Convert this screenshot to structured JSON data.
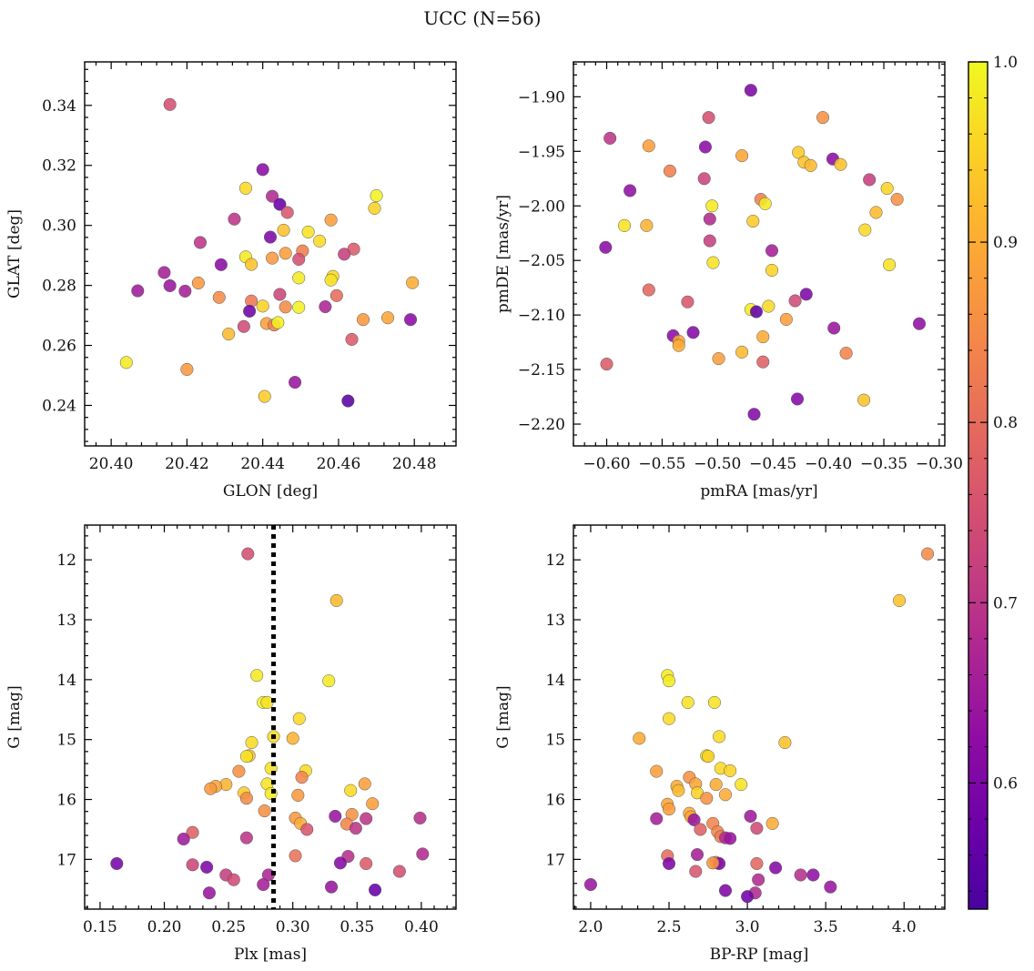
{
  "title": "UCC (N=56)",
  "colorbar": {
    "min": 0.53,
    "max": 1.0,
    "ticks": [
      0.6,
      0.7,
      0.8,
      0.9,
      1.0
    ],
    "tick_labels": [
      "0.6",
      "0.7",
      "0.8",
      "0.9",
      "1.0"
    ],
    "colormap": "plasma"
  },
  "chart_data": [
    {
      "id": "glon-glat",
      "type": "scatter",
      "xlabel": "GLON [deg]",
      "ylabel": "GLAT [deg]",
      "xlim": [
        20.393,
        20.491
      ],
      "ylim": [
        0.2265,
        0.3545
      ],
      "xticks": [
        20.4,
        20.42,
        20.44,
        20.46,
        20.48
      ],
      "xtick_labels": [
        "20.40",
        "20.42",
        "20.44",
        "20.46",
        "20.48"
      ],
      "yticks": [
        0.24,
        0.26,
        0.28,
        0.3,
        0.32,
        0.34
      ],
      "ytick_labels": [
        "0.24",
        "0.26",
        "0.28",
        "0.30",
        "0.32",
        "0.34"
      ],
      "points": [
        [
          20.4155,
          0.3403,
          0.75
        ],
        [
          20.44,
          0.3186,
          0.62
        ],
        [
          20.4355,
          0.3124,
          0.96
        ],
        [
          20.4425,
          0.3097,
          0.68
        ],
        [
          20.4445,
          0.307,
          0.57
        ],
        [
          20.47,
          0.3099,
          0.99
        ],
        [
          20.4465,
          0.3043,
          0.76
        ],
        [
          20.4325,
          0.3021,
          0.7
        ],
        [
          20.4695,
          0.3057,
          0.95
        ],
        [
          20.452,
          0.2978,
          0.97
        ],
        [
          20.458,
          0.3018,
          0.88
        ],
        [
          20.4455,
          0.2984,
          0.93
        ],
        [
          20.442,
          0.2961,
          0.6
        ],
        [
          20.4235,
          0.2943,
          0.7
        ],
        [
          20.455,
          0.2948,
          0.96
        ],
        [
          20.4505,
          0.2915,
          0.83
        ],
        [
          20.464,
          0.2921,
          0.77
        ],
        [
          20.4615,
          0.2904,
          0.72
        ],
        [
          20.446,
          0.2907,
          0.88
        ],
        [
          20.4355,
          0.2895,
          0.98
        ],
        [
          20.4425,
          0.2891,
          0.87
        ],
        [
          20.4495,
          0.2887,
          0.75
        ],
        [
          20.429,
          0.2869,
          0.62
        ],
        [
          20.437,
          0.287,
          0.93
        ],
        [
          20.414,
          0.2843,
          0.66
        ],
        [
          20.423,
          0.2808,
          0.87
        ],
        [
          20.4495,
          0.2825,
          0.98
        ],
        [
          20.4585,
          0.283,
          0.96
        ],
        [
          20.4795,
          0.2809,
          0.9
        ],
        [
          20.4155,
          0.2799,
          0.64
        ],
        [
          20.407,
          0.2782,
          0.65
        ],
        [
          20.4195,
          0.2781,
          0.66
        ],
        [
          20.458,
          0.2818,
          0.97
        ],
        [
          20.4285,
          0.276,
          0.85
        ],
        [
          20.437,
          0.2748,
          0.82
        ],
        [
          20.4595,
          0.2766,
          0.8
        ],
        [
          20.4445,
          0.277,
          0.73
        ],
        [
          20.44,
          0.2731,
          0.95
        ],
        [
          20.4495,
          0.2727,
          0.99
        ],
        [
          20.4565,
          0.2729,
          0.67
        ],
        [
          20.4365,
          0.2714,
          0.58
        ],
        [
          20.446,
          0.2728,
          0.85
        ],
        [
          20.4665,
          0.2686,
          0.87
        ],
        [
          20.473,
          0.2692,
          0.89
        ],
        [
          20.479,
          0.2686,
          0.62
        ],
        [
          20.441,
          0.2673,
          0.88
        ],
        [
          20.443,
          0.2668,
          0.83
        ],
        [
          20.444,
          0.2676,
          0.99
        ],
        [
          20.435,
          0.2663,
          0.74
        ],
        [
          20.431,
          0.2638,
          0.92
        ],
        [
          20.4635,
          0.262,
          0.77
        ],
        [
          20.404,
          0.2543,
          0.98
        ],
        [
          20.42,
          0.252,
          0.87
        ],
        [
          20.4405,
          0.243,
          0.94
        ],
        [
          20.4485,
          0.2477,
          0.64
        ],
        [
          20.4625,
          0.2415,
          0.55
        ]
      ]
    },
    {
      "id": "pmra-pmde",
      "type": "scatter",
      "xlabel": "pmRA [mas/yr]",
      "ylabel": "pmDE [mas/yr]",
      "xlim": [
        -0.63,
        -0.295
      ],
      "ylim": [
        -2.22,
        -1.868
      ],
      "xticks": [
        -0.6,
        -0.55,
        -0.5,
        -0.45,
        -0.4,
        -0.35,
        -0.3
      ],
      "xtick_labels": [
        "−0.60",
        "−0.55",
        "−0.50",
        "−0.45",
        "−0.40",
        "−0.35",
        "−0.30"
      ],
      "yticks": [
        -2.2,
        -2.15,
        -2.1,
        -2.05,
        -2.0,
        -1.95,
        -1.9
      ],
      "ytick_labels": [
        "−2.20",
        "−2.15",
        "−2.10",
        "−2.05",
        "−2.00",
        "−1.95",
        "−1.90"
      ],
      "points": [
        [
          -0.47,
          -1.894,
          0.6
        ],
        [
          -0.508,
          -1.919,
          0.75
        ],
        [
          -0.405,
          -1.919,
          0.86
        ],
        [
          -0.597,
          -1.938,
          0.7
        ],
        [
          -0.562,
          -1.945,
          0.88
        ],
        [
          -0.511,
          -1.946,
          0.62
        ],
        [
          -0.478,
          -1.954,
          0.89
        ],
        [
          -0.427,
          -1.951,
          0.94
        ],
        [
          -0.396,
          -1.957,
          0.62
        ],
        [
          -0.422,
          -1.96,
          0.93
        ],
        [
          -0.416,
          -1.963,
          0.92
        ],
        [
          -0.389,
          -1.962,
          0.93
        ],
        [
          -0.543,
          -1.968,
          0.83
        ],
        [
          -0.512,
          -1.975,
          0.73
        ],
        [
          -0.363,
          -1.976,
          0.72
        ],
        [
          -0.579,
          -1.986,
          0.63
        ],
        [
          -0.347,
          -1.984,
          0.95
        ],
        [
          -0.338,
          -1.994,
          0.86
        ],
        [
          -0.461,
          -1.994,
          0.83
        ],
        [
          -0.457,
          -1.998,
          0.98
        ],
        [
          -0.505,
          -2.0,
          0.98
        ],
        [
          -0.357,
          -2.006,
          0.92
        ],
        [
          -0.507,
          -2.012,
          0.68
        ],
        [
          -0.468,
          -2.014,
          0.94
        ],
        [
          -0.584,
          -2.018,
          0.97
        ],
        [
          -0.564,
          -2.018,
          0.91
        ],
        [
          -0.367,
          -2.022,
          0.96
        ],
        [
          -0.507,
          -2.032,
          0.72
        ],
        [
          -0.601,
          -2.038,
          0.62
        ],
        [
          -0.451,
          -2.041,
          0.66
        ],
        [
          -0.504,
          -2.052,
          0.97
        ],
        [
          -0.345,
          -2.054,
          0.97
        ],
        [
          -0.451,
          -2.059,
          0.95
        ],
        [
          -0.562,
          -2.077,
          0.79
        ],
        [
          -0.42,
          -2.081,
          0.6
        ],
        [
          -0.527,
          -2.088,
          0.76
        ],
        [
          -0.43,
          -2.087,
          0.74
        ],
        [
          -0.454,
          -2.092,
          0.96
        ],
        [
          -0.47,
          -2.095,
          0.98
        ],
        [
          -0.438,
          -2.104,
          0.88
        ],
        [
          -0.318,
          -2.108,
          0.63
        ],
        [
          -0.395,
          -2.112,
          0.64
        ],
        [
          -0.522,
          -2.116,
          0.61
        ],
        [
          -0.54,
          -2.119,
          0.62
        ],
        [
          -0.459,
          -2.12,
          0.9
        ],
        [
          -0.535,
          -2.124,
          0.89
        ],
        [
          -0.535,
          -2.128,
          0.9
        ],
        [
          -0.478,
          -2.134,
          0.92
        ],
        [
          -0.384,
          -2.135,
          0.84
        ],
        [
          -0.499,
          -2.14,
          0.88
        ],
        [
          -0.6,
          -2.145,
          0.77
        ],
        [
          -0.459,
          -2.143,
          0.78
        ],
        [
          -0.428,
          -2.177,
          0.61
        ],
        [
          -0.368,
          -2.178,
          0.93
        ],
        [
          -0.467,
          -2.191,
          0.61
        ],
        [
          -0.465,
          -2.097,
          0.56
        ]
      ]
    },
    {
      "id": "plx-g",
      "type": "scatter",
      "xlabel": "Plx [mas]",
      "ylabel": "G [mag]",
      "xlim": [
        0.138,
        0.427
      ],
      "ylim": [
        17.83,
        11.42
      ],
      "inverted_y": true,
      "vline": {
        "x": 0.285,
        "style": "dotted"
      },
      "xticks": [
        0.15,
        0.2,
        0.25,
        0.3,
        0.35,
        0.4
      ],
      "xtick_labels": [
        "0.15",
        "0.20",
        "0.25",
        "0.30",
        "0.35",
        "0.40"
      ],
      "yticks": [
        12,
        13,
        14,
        15,
        16,
        17
      ],
      "ytick_labels": [
        "12",
        "13",
        "14",
        "15",
        "16",
        "17"
      ],
      "points": [
        [
          0.265,
          11.9,
          0.75
        ],
        [
          0.334,
          12.68,
          0.92
        ],
        [
          0.272,
          13.93,
          0.98
        ],
        [
          0.328,
          14.02,
          0.98
        ],
        [
          0.277,
          14.38,
          0.99
        ],
        [
          0.28,
          14.38,
          0.97
        ],
        [
          0.305,
          14.65,
          0.96
        ],
        [
          0.285,
          14.95,
          0.96
        ],
        [
          0.3,
          14.98,
          0.91
        ],
        [
          0.268,
          15.05,
          0.96
        ],
        [
          0.258,
          15.53,
          0.86
        ],
        [
          0.283,
          15.48,
          0.97
        ],
        [
          0.31,
          15.52,
          0.96
        ],
        [
          0.266,
          15.27,
          0.93
        ],
        [
          0.264,
          15.28,
          0.97
        ],
        [
          0.307,
          15.63,
          0.84
        ],
        [
          0.356,
          15.74,
          0.88
        ],
        [
          0.248,
          15.75,
          0.91
        ],
        [
          0.24,
          15.78,
          0.89
        ],
        [
          0.236,
          15.82,
          0.87
        ],
        [
          0.28,
          15.74,
          0.97
        ],
        [
          0.262,
          15.89,
          0.94
        ],
        [
          0.283,
          15.9,
          0.98
        ],
        [
          0.304,
          15.93,
          0.87
        ],
        [
          0.345,
          15.85,
          0.96
        ],
        [
          0.264,
          15.98,
          0.85
        ],
        [
          0.362,
          16.07,
          0.88
        ],
        [
          0.278,
          16.19,
          0.86
        ],
        [
          0.302,
          16.31,
          0.87
        ],
        [
          0.346,
          16.25,
          0.86
        ],
        [
          0.306,
          16.4,
          0.9
        ],
        [
          0.333,
          16.28,
          0.64
        ],
        [
          0.342,
          16.41,
          0.84
        ],
        [
          0.357,
          16.32,
          0.7
        ],
        [
          0.399,
          16.31,
          0.69
        ],
        [
          0.349,
          16.48,
          0.7
        ],
        [
          0.311,
          16.5,
          0.76
        ],
        [
          0.222,
          16.55,
          0.78
        ],
        [
          0.215,
          16.66,
          0.65
        ],
        [
          0.264,
          16.64,
          0.7
        ],
        [
          0.302,
          16.94,
          0.81
        ],
        [
          0.343,
          16.95,
          0.69
        ],
        [
          0.401,
          16.91,
          0.68
        ],
        [
          0.163,
          17.07,
          0.59
        ],
        [
          0.222,
          17.09,
          0.73
        ],
        [
          0.233,
          17.13,
          0.6
        ],
        [
          0.337,
          17.06,
          0.61
        ],
        [
          0.357,
          17.07,
          0.77
        ],
        [
          0.383,
          17.2,
          0.75
        ],
        [
          0.248,
          17.26,
          0.72
        ],
        [
          0.281,
          17.26,
          0.67
        ],
        [
          0.254,
          17.34,
          0.74
        ],
        [
          0.277,
          17.42,
          0.66
        ],
        [
          0.33,
          17.46,
          0.64
        ],
        [
          0.235,
          17.56,
          0.64
        ],
        [
          0.364,
          17.51,
          0.57
        ]
      ]
    },
    {
      "id": "bprp-g",
      "type": "scatter",
      "xlabel": "BP-RP [mag]",
      "ylabel": "G [mag]",
      "xlim": [
        1.89,
        4.26
      ],
      "ylim": [
        17.83,
        11.42
      ],
      "inverted_y": true,
      "xticks": [
        2.0,
        2.5,
        3.0,
        3.5,
        4.0
      ],
      "xtick_labels": [
        "2.0",
        "2.5",
        "3.0",
        "3.5",
        "4.0"
      ],
      "yticks": [
        12,
        13,
        14,
        15,
        16,
        17
      ],
      "ytick_labels": [
        "12",
        "13",
        "14",
        "15",
        "16",
        "17"
      ],
      "points": [
        [
          4.15,
          11.9,
          0.85
        ],
        [
          3.97,
          12.68,
          0.93
        ],
        [
          2.49,
          13.93,
          0.98
        ],
        [
          2.5,
          14.02,
          0.98
        ],
        [
          2.62,
          14.38,
          0.97
        ],
        [
          2.79,
          14.38,
          0.97
        ],
        [
          2.5,
          14.65,
          0.96
        ],
        [
          2.82,
          14.95,
          0.96
        ],
        [
          2.31,
          14.98,
          0.9
        ],
        [
          3.24,
          15.05,
          0.93
        ],
        [
          2.42,
          15.53,
          0.88
        ],
        [
          2.83,
          15.48,
          0.96
        ],
        [
          2.89,
          15.52,
          0.95
        ],
        [
          2.74,
          15.27,
          0.98
        ],
        [
          2.75,
          15.28,
          0.95
        ],
        [
          2.63,
          15.63,
          0.86
        ],
        [
          2.55,
          15.78,
          0.9
        ],
        [
          2.56,
          15.85,
          0.92
        ],
        [
          2.67,
          15.74,
          0.89
        ],
        [
          2.8,
          15.75,
          0.9
        ],
        [
          2.96,
          15.75,
          0.97
        ],
        [
          2.68,
          15.89,
          0.95
        ],
        [
          2.74,
          15.98,
          0.86
        ],
        [
          2.86,
          15.92,
          0.9
        ],
        [
          2.49,
          16.08,
          0.89
        ],
        [
          2.5,
          16.16,
          0.88
        ],
        [
          2.63,
          16.23,
          0.9
        ],
        [
          2.64,
          16.29,
          0.89
        ],
        [
          2.42,
          16.32,
          0.66
        ],
        [
          2.66,
          16.34,
          0.64
        ],
        [
          2.78,
          16.4,
          0.84
        ],
        [
          2.7,
          16.5,
          0.78
        ],
        [
          2.81,
          16.54,
          0.84
        ],
        [
          3.02,
          16.28,
          0.65
        ],
        [
          3.06,
          16.48,
          0.74
        ],
        [
          3.16,
          16.4,
          0.9
        ],
        [
          2.83,
          16.62,
          0.83
        ],
        [
          2.86,
          16.64,
          0.68
        ],
        [
          2.89,
          16.65,
          0.64
        ],
        [
          2.49,
          16.94,
          0.8
        ],
        [
          2.68,
          16.92,
          0.66
        ],
        [
          2.5,
          17.07,
          0.6
        ],
        [
          2.8,
          17.05,
          0.82
        ],
        [
          2.82,
          17.07,
          0.6
        ],
        [
          3.06,
          17.07,
          0.79
        ],
        [
          3.18,
          17.14,
          0.61
        ],
        [
          2.67,
          17.2,
          0.76
        ],
        [
          3.07,
          17.34,
          0.68
        ],
        [
          3.34,
          17.26,
          0.69
        ],
        [
          3.42,
          17.26,
          0.63
        ],
        [
          2.0,
          17.42,
          0.64
        ],
        [
          2.86,
          17.52,
          0.6
        ],
        [
          3.53,
          17.46,
          0.64
        ],
        [
          3.05,
          17.56,
          0.68
        ],
        [
          2.78,
          17.06,
          0.87
        ],
        [
          3.0,
          17.62,
          0.58
        ]
      ]
    }
  ]
}
